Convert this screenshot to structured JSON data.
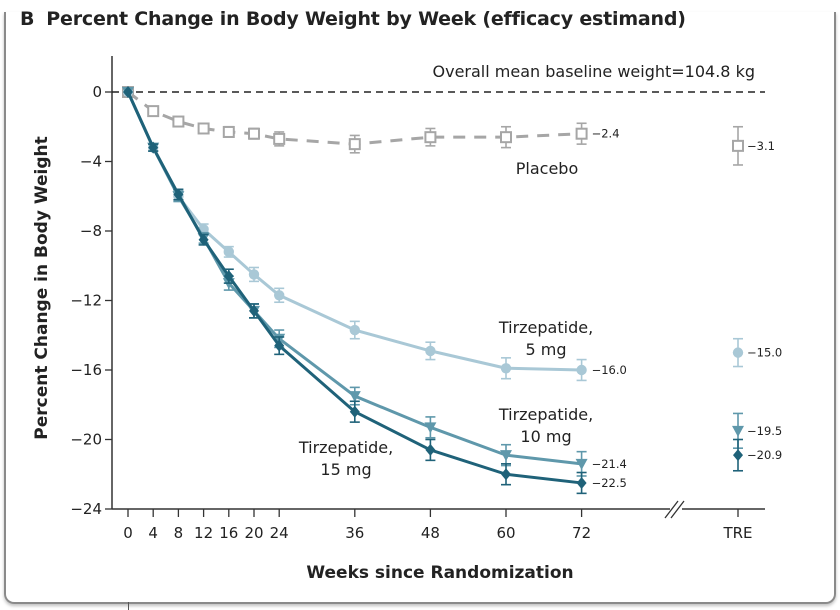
{
  "figure": {
    "panel_label": "B",
    "title": "Percent Change in Body Weight by Week (efficacy estimand)"
  },
  "chart_data": {
    "type": "line",
    "title": "Percent Change in Body Weight by Week (efficacy estimand)",
    "xlabel": "Weeks since Randomization",
    "ylabel": "Percent Change in Body Weight",
    "ylim": [
      -24,
      0
    ],
    "yticks": [
      0,
      -4,
      -8,
      -12,
      -16,
      -20,
      -24
    ],
    "ytick_labels": [
      "0",
      "−4",
      "−8",
      "−12",
      "−16",
      "−20",
      "−24"
    ],
    "x": [
      0,
      4,
      8,
      12,
      16,
      20,
      24,
      36,
      48,
      60,
      72
    ],
    "xtick_labels": [
      "0",
      "4",
      "8",
      "12",
      "16",
      "20",
      "24",
      "36",
      "48",
      "60",
      "72",
      "TRE"
    ],
    "x_break": "between 72 and TRE",
    "grid": false,
    "reference_line": {
      "y": 0,
      "style": "dashed"
    },
    "annotation": "Overall mean baseline weight=104.8 kg",
    "series": [
      {
        "name": "Placebo",
        "label_lines": [
          "Placebo"
        ],
        "color": "#a6a6a6",
        "marker": "open-square",
        "line_style": "dashed",
        "values": [
          0,
          -1.1,
          -1.7,
          -2.1,
          -2.3,
          -2.4,
          -2.7,
          -3.0,
          -2.6,
          -2.6,
          -2.4
        ],
        "ci_half_width": [
          0,
          0.2,
          0.2,
          0.2,
          0.3,
          0.3,
          0.4,
          0.5,
          0.5,
          0.6,
          0.6
        ],
        "end_label": "−2.4",
        "tre_value": -3.1,
        "tre_ci_half_width": 1.1,
        "tre_label": "−3.1"
      },
      {
        "name": "Tirzepatide, 5 mg",
        "label_lines": [
          "Tirzepatide,",
          "5 mg"
        ],
        "color": "#a9c8d6",
        "marker": "circle",
        "line_style": "solid",
        "values": [
          0,
          -3.2,
          -6.0,
          -7.9,
          -9.2,
          -10.5,
          -11.7,
          -13.7,
          -14.9,
          -15.9,
          -16.0
        ],
        "ci_half_width": [
          0,
          0.2,
          0.3,
          0.3,
          0.3,
          0.4,
          0.4,
          0.5,
          0.5,
          0.6,
          0.6
        ],
        "end_label": "−16.0",
        "tre_value": -15.0,
        "tre_ci_half_width": 0.8,
        "tre_label": "−15.0"
      },
      {
        "name": "Tirzepatide, 10 mg",
        "label_lines": [
          "Tirzepatide,",
          "10 mg"
        ],
        "color": "#5f98ab",
        "marker": "triangle-down",
        "line_style": "solid",
        "values": [
          0,
          -3.2,
          -6.0,
          -8.4,
          -11.0,
          -12.6,
          -14.2,
          -17.5,
          -19.3,
          -20.9,
          -21.4
        ],
        "ci_half_width": [
          0,
          0.2,
          0.3,
          0.3,
          0.4,
          0.4,
          0.5,
          0.5,
          0.6,
          0.6,
          0.7
        ],
        "end_label": "−21.4",
        "tre_value": -19.5,
        "tre_ci_half_width": 1.0,
        "tre_label": "−19.5"
      },
      {
        "name": "Tirzepatide, 15 mg",
        "label_lines": [
          "Tirzepatide,",
          "15 mg"
        ],
        "color": "#1f6279",
        "marker": "diamond",
        "line_style": "solid",
        "values": [
          0,
          -3.2,
          -5.9,
          -8.5,
          -10.6,
          -12.6,
          -14.6,
          -18.4,
          -20.6,
          -22.0,
          -22.5
        ],
        "ci_half_width": [
          0,
          0.2,
          0.3,
          0.3,
          0.4,
          0.4,
          0.5,
          0.6,
          0.6,
          0.6,
          0.6
        ],
        "end_label": "−22.5",
        "tre_value": -20.9,
        "tre_ci_half_width": 0.9,
        "tre_label": "−20.9"
      }
    ]
  }
}
